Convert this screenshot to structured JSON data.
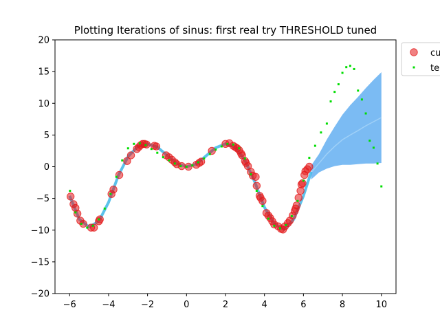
{
  "chart_data": {
    "type": "scatter",
    "title": "Plotting Iterations of sinus: first real try THRESHOLD tuned",
    "xlabel": "",
    "ylabel": "",
    "xlim": [
      -6.75,
      10.75
    ],
    "ylim": [
      -20,
      20
    ],
    "xticks": [
      -6,
      -4,
      -2,
      0,
      2,
      4,
      6,
      8,
      10
    ],
    "yticks": [
      -20,
      -15,
      -10,
      -5,
      0,
      5,
      10,
      15,
      20
    ],
    "grid": false,
    "legend_placement": "outside upper right (clipped)",
    "legend": [
      {
        "label": "cu",
        "marker": "circle",
        "color": "#e41a1c"
      },
      {
        "label": "te",
        "marker": "square",
        "color": "#00dd00"
      }
    ],
    "series": [
      {
        "name": "cu",
        "kind": "scatter",
        "color": "#e41a1c",
        "x": [
          -5.95,
          -5.8,
          -5.7,
          -5.6,
          -5.45,
          -5.3,
          -4.9,
          -4.75,
          -4.5,
          -4.45,
          -3.85,
          -3.75,
          -3.45,
          -3.05,
          -2.85,
          -2.55,
          -2.45,
          -2.35,
          -2.25,
          -2.15,
          -2.05,
          -1.65,
          -1.55,
          -1.05,
          -0.9,
          -0.75,
          -0.6,
          -0.5,
          -0.25,
          0.1,
          0.5,
          0.65,
          0.75,
          1.3,
          2.0,
          2.2,
          2.4,
          2.5,
          2.6,
          2.7,
          2.8,
          2.85,
          3.0,
          3.05,
          3.15,
          3.3,
          3.4,
          3.55,
          3.6,
          3.75,
          3.8,
          3.9,
          4.1,
          4.2,
          4.3,
          4.4,
          4.5,
          4.7,
          4.85,
          4.95,
          5.05,
          5.2,
          5.3,
          5.45,
          5.55,
          5.6,
          5.65,
          5.75,
          5.85,
          5.9,
          5.95,
          6.05,
          6.1,
          6.2,
          6.3
        ],
        "y": [
          -4.7,
          -5.9,
          -6.5,
          -7.4,
          -8.5,
          -9.0,
          -9.6,
          -9.6,
          -8.6,
          -8.3,
          -4.3,
          -3.6,
          -1.3,
          0.9,
          1.8,
          2.8,
          3.1,
          3.4,
          3.6,
          3.6,
          3.5,
          3.3,
          3.2,
          1.8,
          1.5,
          1.1,
          0.7,
          0.4,
          0.1,
          0.0,
          0.3,
          0.6,
          0.8,
          2.5,
          3.6,
          3.7,
          3.3,
          3.1,
          2.9,
          2.6,
          2.1,
          1.8,
          0.9,
          0.6,
          0.1,
          -0.8,
          -1.4,
          -1.6,
          -3.0,
          -4.6,
          -4.9,
          -5.4,
          -7.3,
          -7.7,
          -8.1,
          -8.6,
          -9.1,
          -9.4,
          -9.8,
          -9.9,
          -9.4,
          -8.9,
          -8.5,
          -7.7,
          -7.0,
          -6.6,
          -6.1,
          -4.9,
          -3.8,
          -2.8,
          -2.6,
          -1.3,
          -0.7,
          -0.4,
          0.0
        ]
      },
      {
        "name": "te",
        "kind": "scatter",
        "color": "#00dd00",
        "x": [
          -5.98,
          -5.7,
          -5.4,
          -5.1,
          -4.8,
          -4.5,
          -4.2,
          -3.9,
          -3.6,
          -3.3,
          -3.0,
          -2.7,
          -2.4,
          -2.1,
          -1.8,
          -1.5,
          -1.2,
          -0.9,
          -0.6,
          -0.3,
          0.0,
          0.3,
          0.6,
          0.9,
          1.2,
          1.5,
          1.8,
          2.1,
          2.4,
          2.7,
          3.0,
          3.3,
          3.6,
          3.9,
          4.2,
          4.5,
          4.8,
          5.1,
          5.4,
          5.7,
          6.0,
          6.3,
          6.6,
          6.9,
          7.2,
          7.4,
          7.6,
          7.8,
          8.0,
          8.2,
          8.4,
          8.6,
          8.8,
          9.0,
          9.2,
          9.4,
          9.6,
          9.8,
          10.0
        ],
        "y": [
          -3.8,
          -7.2,
          -9.0,
          -9.6,
          -9.3,
          -8.3,
          -6.6,
          -4.3,
          -1.6,
          1.0,
          2.9,
          3.6,
          3.7,
          3.4,
          2.8,
          2.2,
          1.5,
          1.0,
          0.5,
          0.1,
          0.0,
          0.2,
          0.7,
          1.3,
          2.0,
          2.7,
          3.2,
          3.6,
          3.5,
          2.9,
          1.3,
          -1.2,
          -3.8,
          -6.2,
          -8.2,
          -9.3,
          -9.7,
          -9.2,
          -7.8,
          -5.4,
          -2.2,
          1.4,
          3.3,
          5.4,
          6.8,
          10.3,
          11.8,
          13.0,
          14.8,
          15.7,
          15.9,
          15.4,
          12.0,
          10.6,
          8.4,
          4.1,
          3.0,
          0.5,
          -3.1
        ]
      },
      {
        "name": "",
        "kind": "line",
        "color": "#3fb7e8",
        "x": [
          -6.0,
          -5.5,
          -5.0,
          -4.5,
          -4.0,
          -3.5,
          -3.0,
          -2.5,
          -2.0,
          -1.5,
          -1.0,
          -0.5,
          0.0,
          0.5,
          1.0,
          1.5,
          2.0,
          2.5,
          3.0,
          3.5,
          4.0,
          4.5,
          5.0,
          5.5,
          6.0,
          6.4
        ],
        "y": [
          -4.6,
          -8.3,
          -9.5,
          -8.6,
          -5.6,
          -1.4,
          1.6,
          3.2,
          3.6,
          3.1,
          1.8,
          0.5,
          0.0,
          0.4,
          1.7,
          3.0,
          3.6,
          3.1,
          1.0,
          -2.4,
          -6.4,
          -9.0,
          -9.9,
          -8.3,
          -4.6,
          -0.8
        ]
      },
      {
        "name": "",
        "kind": "band",
        "color": "#5aaaf0",
        "x": [
          6.4,
          6.8,
          7.2,
          7.6,
          8.0,
          8.4,
          8.8,
          9.2,
          9.6,
          10.0
        ],
        "upper": [
          0.2,
          2.0,
          4.3,
          6.3,
          8.2,
          9.7,
          11.0,
          12.4,
          13.7,
          14.9
        ],
        "lower": [
          -2.0,
          -0.9,
          -0.3,
          0.1,
          0.3,
          0.3,
          0.4,
          0.5,
          0.5,
          0.6
        ]
      }
    ]
  }
}
